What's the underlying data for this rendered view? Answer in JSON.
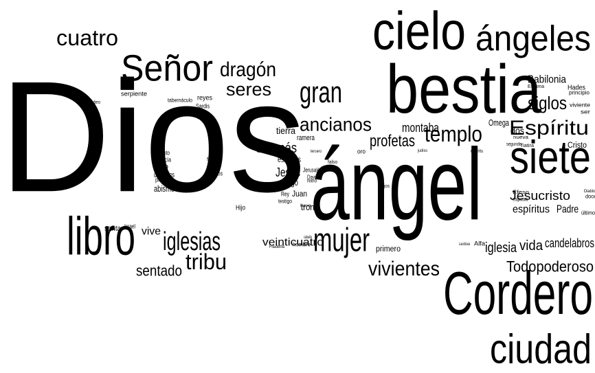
{
  "words": [
    "Dios",
    "ángel",
    "bestia",
    "cielo",
    "Cordero",
    "ángeles",
    "ciudad",
    "siete",
    "Señor",
    "libro",
    "mujer",
    "iglesias",
    "gran",
    "vivientes",
    "templo",
    "ancianos",
    "tribu",
    "dragón",
    "seres",
    "cuatro",
    "Espíritu",
    "Todopoderoso",
    "sentado",
    "profetas",
    "siglos",
    "Satanás",
    "vida",
    "montaba",
    "veinticuatro",
    "Babilonia",
    "Jesucristo",
    "iglesia",
    "candelabros",
    "Jesús",
    "vive",
    "dos",
    "primero",
    "abismo",
    "fuego",
    "espíritus",
    "Padre",
    "Omega",
    "tierra",
    "estrellas",
    "demonios",
    "ramera",
    "Santo",
    "trono",
    "Hades",
    "Cristo",
    "santa",
    "Juan",
    "Hijo",
    "Israel",
    "serpiente",
    "reyes",
    "Sardis",
    "fiel",
    "libito",
    "profecía",
    "profeta",
    "hombre",
    "Alfa",
    "Rey",
    "testigo",
    "Jerusalén",
    "reino",
    "David",
    "fin",
    "diablo",
    "hijos",
    "tabernáculo",
    "principio",
    "viviente",
    "ser",
    "doce",
    "último",
    "esposa",
    "Éfeso",
    "nueva",
    "Tiatira",
    "segundo",
    "Esmirna",
    "Pérgamo",
    "Filadelfia",
    "Laodicea",
    "Verdadero",
    "falso",
    "oro",
    "espíritu",
    "caballo",
    "judíos",
    "ojos",
    "llave",
    "tercero",
    "Diablo"
  ]
}
